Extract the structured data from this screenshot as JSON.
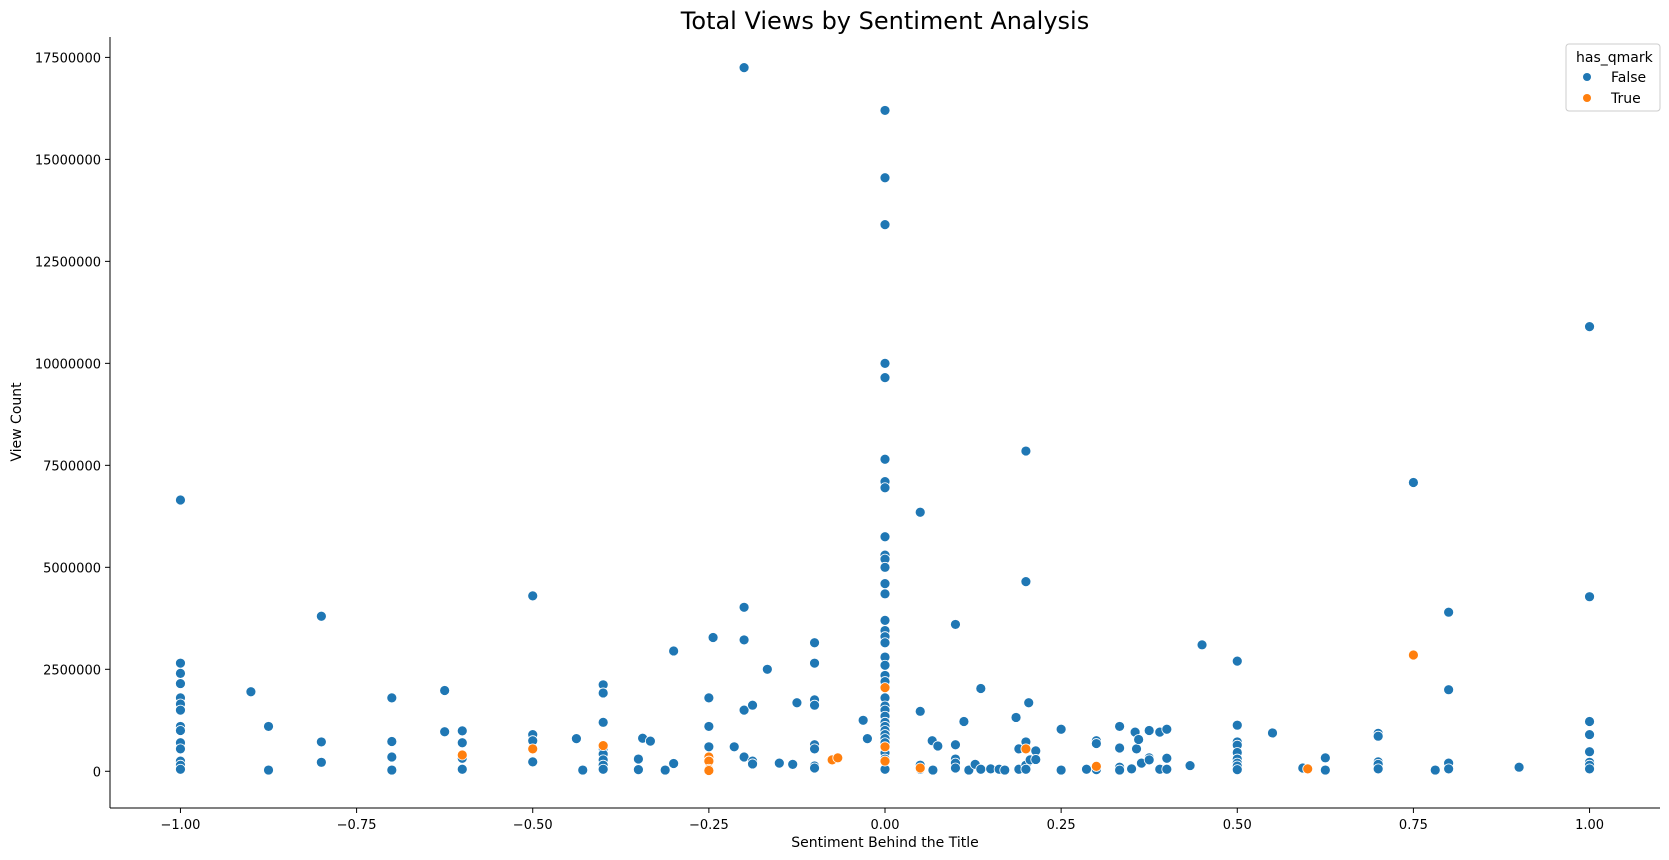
{
  "chart_data": {
    "type": "scatter",
    "title": "Total Views by Sentiment Analysis",
    "xlabel": "Sentiment Behind the Title",
    "ylabel": "View Count",
    "xlim": [
      -1.1,
      1.1
    ],
    "ylim": [
      -900000,
      18000000
    ],
    "xticks": [
      -1.0,
      -0.75,
      -0.5,
      -0.25,
      0.0,
      0.25,
      0.5,
      0.75,
      1.0
    ],
    "xtick_labels": [
      "−1.00",
      "−0.75",
      "−0.50",
      "−0.25",
      "0.00",
      "0.25",
      "0.50",
      "0.75",
      "1.00"
    ],
    "yticks": [
      0,
      2500000,
      5000000,
      7500000,
      10000000,
      12500000,
      15000000,
      17500000
    ],
    "ytick_labels": [
      "0",
      "2500000",
      "5000000",
      "7500000",
      "10000000",
      "12500000",
      "15000000",
      "17500000"
    ],
    "grid": false,
    "legend": {
      "title": "has_qmark",
      "placement": "top-right"
    },
    "series": [
      {
        "name": "False",
        "color": "#1f77b4",
        "points": [
          [
            -1.0,
            6650000
          ],
          [
            -1.0,
            2650000
          ],
          [
            -1.0,
            2400000
          ],
          [
            -1.0,
            2150000
          ],
          [
            -1.0,
            1800000
          ],
          [
            -1.0,
            1650000
          ],
          [
            -1.0,
            1500000
          ],
          [
            -1.0,
            1100000
          ],
          [
            -1.0,
            1000000
          ],
          [
            -1.0,
            700000
          ],
          [
            -1.0,
            550000
          ],
          [
            -1.0,
            250000
          ],
          [
            -1.0,
            150000
          ],
          [
            -1.0,
            50000
          ],
          [
            -0.9,
            1950000
          ],
          [
            -0.875,
            1100000
          ],
          [
            -0.875,
            30000
          ],
          [
            -0.8,
            3800000
          ],
          [
            -0.8,
            720000
          ],
          [
            -0.8,
            220000
          ],
          [
            -0.7,
            1800000
          ],
          [
            -0.7,
            730000
          ],
          [
            -0.7,
            350000
          ],
          [
            -0.7,
            30000
          ],
          [
            -0.625,
            1980000
          ],
          [
            -0.625,
            970000
          ],
          [
            -0.6,
            990000
          ],
          [
            -0.6,
            700000
          ],
          [
            -0.6,
            320000
          ],
          [
            -0.6,
            50000
          ],
          [
            -0.5,
            4300000
          ],
          [
            -0.5,
            900000
          ],
          [
            -0.5,
            750000
          ],
          [
            -0.5,
            230000
          ],
          [
            -0.438,
            800000
          ],
          [
            -0.429,
            30000
          ],
          [
            -0.4,
            2120000
          ],
          [
            -0.4,
            1920000
          ],
          [
            -0.4,
            1200000
          ],
          [
            -0.4,
            560000
          ],
          [
            -0.4,
            420000
          ],
          [
            -0.4,
            280000
          ],
          [
            -0.4,
            150000
          ],
          [
            -0.4,
            50000
          ],
          [
            -0.35,
            300000
          ],
          [
            -0.35,
            40000
          ],
          [
            -0.344,
            810000
          ],
          [
            -0.333,
            740000
          ],
          [
            -0.312,
            30000
          ],
          [
            -0.3,
            2950000
          ],
          [
            -0.3,
            190000
          ],
          [
            -0.25,
            1800000
          ],
          [
            -0.25,
            1100000
          ],
          [
            -0.25,
            600000
          ],
          [
            -0.244,
            3280000
          ],
          [
            -0.214,
            600000
          ],
          [
            -0.2,
            17250000
          ],
          [
            -0.2,
            4020000
          ],
          [
            -0.2,
            3220000
          ],
          [
            -0.2,
            1500000
          ],
          [
            -0.2,
            350000
          ],
          [
            -0.188,
            1620000
          ],
          [
            -0.188,
            250000
          ],
          [
            -0.188,
            180000
          ],
          [
            -0.167,
            2500000
          ],
          [
            -0.15,
            200000
          ],
          [
            -0.131,
            170000
          ],
          [
            -0.125,
            1680000
          ],
          [
            -0.1,
            3150000
          ],
          [
            -0.1,
            2650000
          ],
          [
            -0.1,
            1750000
          ],
          [
            -0.1,
            1620000
          ],
          [
            -0.1,
            650000
          ],
          [
            -0.1,
            550000
          ],
          [
            -0.1,
            130000
          ],
          [
            -0.1,
            80000
          ],
          [
            -0.031,
            1250000
          ],
          [
            -0.025,
            800000
          ],
          [
            0.0,
            16200000
          ],
          [
            0.0,
            14550000
          ],
          [
            0.0,
            13400000
          ],
          [
            0.0,
            10000000
          ],
          [
            0.0,
            9650000
          ],
          [
            0.0,
            7650000
          ],
          [
            0.0,
            7100000
          ],
          [
            0.0,
            6950000
          ],
          [
            0.0,
            5750000
          ],
          [
            0.0,
            5300000
          ],
          [
            0.0,
            5200000
          ],
          [
            0.0,
            5000000
          ],
          [
            0.0,
            4600000
          ],
          [
            0.0,
            4350000
          ],
          [
            0.0,
            3700000
          ],
          [
            0.0,
            3450000
          ],
          [
            0.0,
            3300000
          ],
          [
            0.0,
            3150000
          ],
          [
            0.0,
            2800000
          ],
          [
            0.0,
            2600000
          ],
          [
            0.0,
            2350000
          ],
          [
            0.0,
            2200000
          ],
          [
            0.0,
            1800000
          ],
          [
            0.0,
            1600000
          ],
          [
            0.0,
            1500000
          ],
          [
            0.0,
            1350000
          ],
          [
            0.0,
            1200000
          ],
          [
            0.0,
            1100000
          ],
          [
            0.0,
            1000000
          ],
          [
            0.0,
            900000
          ],
          [
            0.0,
            800000
          ],
          [
            0.0,
            700000
          ],
          [
            0.0,
            450000
          ],
          [
            0.0,
            300000
          ],
          [
            0.0,
            50000
          ],
          [
            0.05,
            6350000
          ],
          [
            0.05,
            1470000
          ],
          [
            0.05,
            150000
          ],
          [
            0.05,
            50000
          ],
          [
            0.067,
            750000
          ],
          [
            0.068,
            30000
          ],
          [
            0.075,
            620000
          ],
          [
            0.1,
            3600000
          ],
          [
            0.1,
            650000
          ],
          [
            0.1,
            300000
          ],
          [
            0.1,
            200000
          ],
          [
            0.1,
            80000
          ],
          [
            0.112,
            1220000
          ],
          [
            0.119,
            30000
          ],
          [
            0.128,
            170000
          ],
          [
            0.136,
            2030000
          ],
          [
            0.136,
            50000
          ],
          [
            0.15,
            60000
          ],
          [
            0.162,
            50000
          ],
          [
            0.17,
            30000
          ],
          [
            0.186,
            1320000
          ],
          [
            0.19,
            550000
          ],
          [
            0.19,
            50000
          ],
          [
            0.2,
            7850000
          ],
          [
            0.2,
            4650000
          ],
          [
            0.2,
            720000
          ],
          [
            0.2,
            150000
          ],
          [
            0.2,
            50000
          ],
          [
            0.204,
            1680000
          ],
          [
            0.206,
            280000
          ],
          [
            0.214,
            500000
          ],
          [
            0.214,
            290000
          ],
          [
            0.25,
            1030000
          ],
          [
            0.25,
            30000
          ],
          [
            0.286,
            50000
          ],
          [
            0.3,
            750000
          ],
          [
            0.3,
            680000
          ],
          [
            0.3,
            40000
          ],
          [
            0.333,
            1100000
          ],
          [
            0.333,
            570000
          ],
          [
            0.333,
            100000
          ],
          [
            0.333,
            30000
          ],
          [
            0.35,
            60000
          ],
          [
            0.355,
            960000
          ],
          [
            0.357,
            550000
          ],
          [
            0.36,
            780000
          ],
          [
            0.364,
            200000
          ],
          [
            0.375,
            1000000
          ],
          [
            0.375,
            330000
          ],
          [
            0.375,
            280000
          ],
          [
            0.39,
            960000
          ],
          [
            0.39,
            50000
          ],
          [
            0.4,
            1030000
          ],
          [
            0.4,
            320000
          ],
          [
            0.4,
            50000
          ],
          [
            0.433,
            140000
          ],
          [
            0.45,
            3100000
          ],
          [
            0.5,
            2700000
          ],
          [
            0.5,
            1130000
          ],
          [
            0.5,
            720000
          ],
          [
            0.5,
            640000
          ],
          [
            0.5,
            460000
          ],
          [
            0.5,
            300000
          ],
          [
            0.5,
            200000
          ],
          [
            0.5,
            130000
          ],
          [
            0.5,
            40000
          ],
          [
            0.55,
            940000
          ],
          [
            0.593,
            80000
          ],
          [
            0.625,
            330000
          ],
          [
            0.625,
            30000
          ],
          [
            0.7,
            930000
          ],
          [
            0.7,
            860000
          ],
          [
            0.7,
            230000
          ],
          [
            0.7,
            170000
          ],
          [
            0.7,
            60000
          ],
          [
            0.75,
            7080000
          ],
          [
            0.781,
            30000
          ],
          [
            0.8,
            3900000
          ],
          [
            0.8,
            2000000
          ],
          [
            0.8,
            200000
          ],
          [
            0.8,
            60000
          ],
          [
            0.9,
            100000
          ],
          [
            1.0,
            10900000
          ],
          [
            1.0,
            4280000
          ],
          [
            1.0,
            1220000
          ],
          [
            1.0,
            900000
          ],
          [
            1.0,
            480000
          ],
          [
            1.0,
            220000
          ],
          [
            1.0,
            150000
          ],
          [
            1.0,
            60000
          ]
        ]
      },
      {
        "name": "True",
        "color": "#ff7f0e",
        "points": [
          [
            -0.6,
            400000
          ],
          [
            -0.5,
            550000
          ],
          [
            -0.4,
            630000
          ],
          [
            -0.25,
            350000
          ],
          [
            -0.25,
            250000
          ],
          [
            -0.25,
            50000
          ],
          [
            -0.25,
            20000
          ],
          [
            -0.075,
            280000
          ],
          [
            -0.067,
            330000
          ],
          [
            0.0,
            2050000
          ],
          [
            0.0,
            600000
          ],
          [
            0.0,
            250000
          ],
          [
            0.05,
            80000
          ],
          [
            0.2,
            550000
          ],
          [
            0.3,
            120000
          ],
          [
            0.6,
            60000
          ],
          [
            0.75,
            2850000
          ]
        ]
      }
    ]
  }
}
